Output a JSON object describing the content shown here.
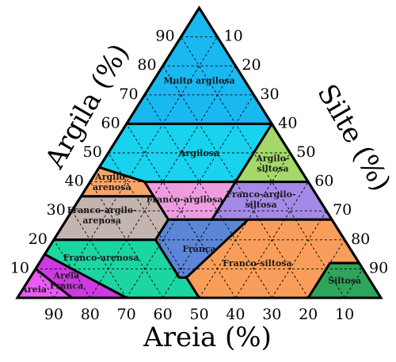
{
  "axes": {
    "clay": "Argila (%)",
    "silt": "Silte (%)",
    "sand": "Areia (%)"
  },
  "ticks": {
    "clay": [
      "10",
      "20",
      "30",
      "40",
      "50",
      "60",
      "70",
      "80",
      "90"
    ],
    "silt": [
      "10",
      "20",
      "30",
      "40",
      "50",
      "60",
      "70",
      "80",
      "90"
    ],
    "sand": [
      "90",
      "80",
      "70",
      "60",
      "50",
      "40",
      "30",
      "20",
      "10"
    ]
  },
  "zones": [
    {
      "key": "muito_argilosa",
      "label": [
        "Muito argilosa"
      ],
      "color": "#1ab8f0"
    },
    {
      "key": "argilosa",
      "label": [
        "Argilosa"
      ],
      "color": "#18d2ee"
    },
    {
      "key": "argilo_siltosa",
      "label": [
        "Argilo-",
        "siltosa"
      ],
      "color": "#a4d96a"
    },
    {
      "key": "argilo_arenosa",
      "label": [
        "Argilo-",
        "arenosa"
      ],
      "color": "#f6a66b"
    },
    {
      "key": "franco_argilosa",
      "label": [
        "Franco-argilosa"
      ],
      "color": "#ee9ce0"
    },
    {
      "key": "franco_argilo_siltosa",
      "label": [
        "Franco-argilo-",
        "siltosa"
      ],
      "color": "#a48ae6"
    },
    {
      "key": "franco_argilo_arenosa",
      "label": [
        "Franco-argilo-",
        "arenosa"
      ],
      "color": "#c4b4b0"
    },
    {
      "key": "franco_arenosa",
      "label": [
        "Franco-arenosa"
      ],
      "color": "#1bd6a1"
    },
    {
      "key": "franca",
      "label": [
        "Franca"
      ],
      "color": "#5c86d8"
    },
    {
      "key": "franco_siltosa",
      "label": [
        "Franco-siltosa"
      ],
      "color": "#f99e5a"
    },
    {
      "key": "siltosa",
      "label": [
        "Siltosa"
      ],
      "color": "#2ea55a"
    },
    {
      "key": "areia_franca",
      "label": [
        "Areia",
        "Franca"
      ],
      "color": "#cc3ae0"
    },
    {
      "key": "areia",
      "label": [
        "Areia"
      ],
      "color": "#e85bf4"
    }
  ]
}
